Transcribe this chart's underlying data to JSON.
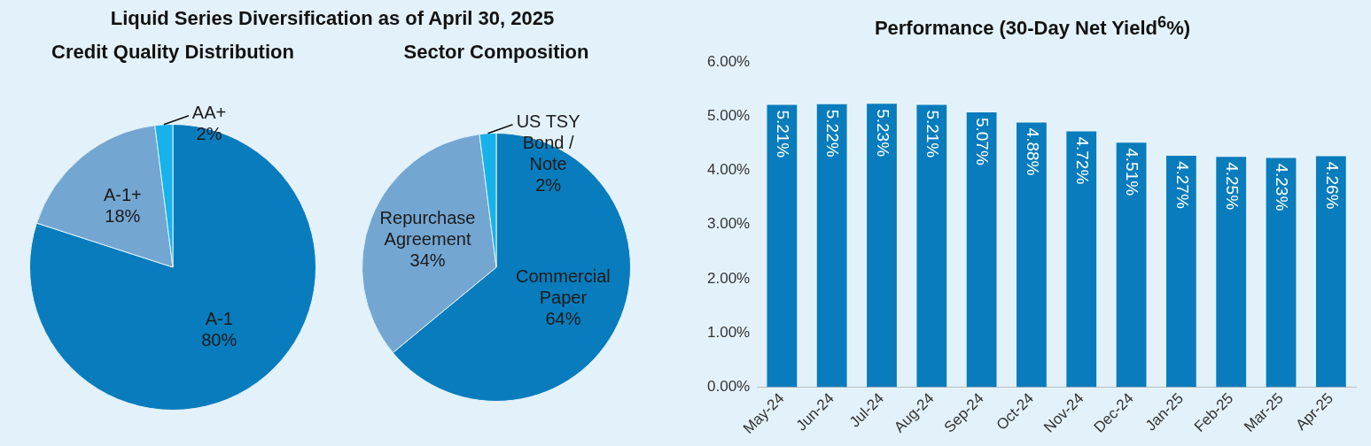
{
  "chart_data": [
    {
      "type": "pie",
      "title": "Credit Quality Distribution",
      "annotations": [
        "Liquid Series Diversification as of April 30, 2025"
      ],
      "categories": [
        "A-1",
        "A-1+",
        "AA+"
      ],
      "values": [
        80,
        18,
        2
      ],
      "colors": [
        "#087cbc",
        "#74a6d2",
        "#17b2ea"
      ],
      "value_labels": [
        "80%",
        "18%",
        "2%"
      ]
    },
    {
      "type": "pie",
      "title": "Sector Composition",
      "categories": [
        "Commercial Paper",
        "Repurchase Agreement",
        "US TSY Bond / Note"
      ],
      "values": [
        64,
        34,
        2
      ],
      "colors": [
        "#087cbc",
        "#74a6d2",
        "#17b2ea"
      ],
      "value_labels": [
        "64%",
        "34%",
        "2%"
      ]
    },
    {
      "type": "bar",
      "title": "Performance (30-Day Net Yield$^{6}$%)",
      "categories": [
        "May-24",
        "Jun-24",
        "Jul-24",
        "Aug-24",
        "Sep-24",
        "Oct-24",
        "Nov-24",
        "Dec-24",
        "Jan-25",
        "Feb-25",
        "Mar-25",
        "Apr-25"
      ],
      "values": [
        5.21,
        5.22,
        5.23,
        5.21,
        5.07,
        4.88,
        4.72,
        4.51,
        4.27,
        4.25,
        4.23,
        4.26
      ],
      "color": "#087cbc",
      "value_labels": [
        "5.21%",
        "5.22%",
        "5.23%",
        "5.21%",
        "5.07%",
        "4.88%",
        "4.72%",
        "4.51%",
        "4.27%",
        "4.25%",
        "4.23%",
        "4.26%"
      ],
      "ylim": [
        0,
        6
      ],
      "yticks": [
        {
          "value": 0,
          "label": "0.00%"
        },
        {
          "value": 1,
          "label": "1.00%"
        },
        {
          "value": 2,
          "label": "2.00%"
        },
        {
          "value": 3,
          "label": "3.00%"
        },
        {
          "value": 4,
          "label": "4.00%"
        },
        {
          "value": 5,
          "label": "5.00%"
        },
        {
          "value": 6,
          "label": "6.00%"
        }
      ],
      "grid": false
    }
  ]
}
